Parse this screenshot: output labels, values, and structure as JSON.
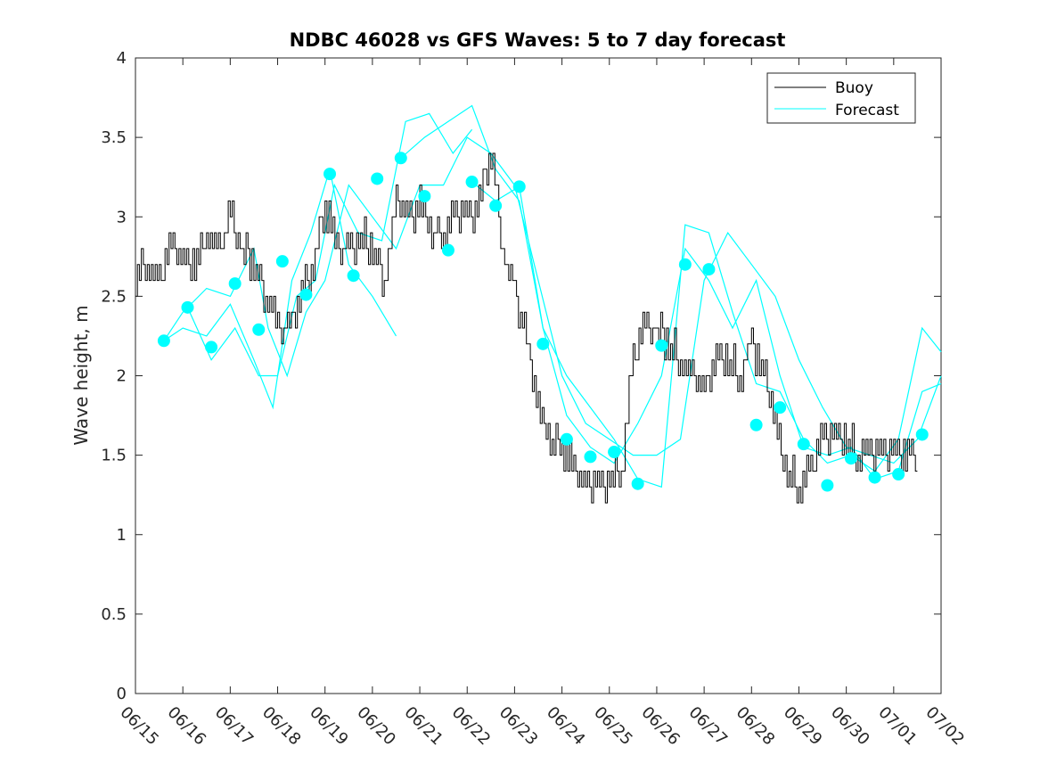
{
  "chart_data": {
    "type": "line",
    "title": "NDBC 46028 vs GFS Waves: 5 to 7 day forecast",
    "xlabel": "",
    "ylabel": "Wave height, m",
    "ylim": [
      0,
      4
    ],
    "yticks": [
      "0",
      "0.5",
      "1",
      "1.5",
      "2",
      "2.5",
      "3",
      "3.5",
      "4"
    ],
    "xlim": [
      0,
      17
    ],
    "xticks": [
      "06/15",
      "06/16",
      "06/17",
      "06/18",
      "06/19",
      "06/20",
      "06/21",
      "06/22",
      "06/23",
      "06/24",
      "06/25",
      "06/26",
      "06/27",
      "06/28",
      "06/29",
      "06/30",
      "07/01",
      "07/02"
    ],
    "grid": false,
    "legend_position": "top-right",
    "colors": {
      "buoy": "#000000",
      "forecast": "#00ffff"
    },
    "series": [
      {
        "name": "Buoy",
        "style": "line",
        "x": [
          0,
          0.25,
          0.5,
          0.75,
          1,
          1.25,
          1.5,
          1.75,
          2,
          2.25,
          2.5,
          2.75,
          3,
          3.25,
          3.5,
          3.75,
          4,
          4.25,
          4.5,
          4.75,
          5,
          5.25,
          5.5,
          5.75,
          6,
          6.25,
          6.5,
          6.75,
          7,
          7.25,
          7.5,
          7.75,
          8,
          8.25,
          8.5,
          8.75,
          9,
          9.25,
          9.5,
          9.75,
          10,
          10.25,
          10.5,
          10.75,
          11,
          11.25,
          11.5,
          11.75,
          12,
          12.25,
          12.5,
          12.75,
          13,
          13.25,
          13.5,
          13.75,
          14,
          14.25,
          14.5,
          14.75,
          15,
          15.25,
          15.5,
          15.75,
          16,
          16.25
        ],
        "y": [
          2.6,
          2.7,
          2.6,
          2.8,
          2.7,
          2.7,
          2.9,
          2.8,
          3.0,
          2.8,
          2.7,
          2.5,
          2.3,
          2.3,
          2.5,
          2.7,
          3.1,
          2.8,
          2.8,
          2.9,
          2.8,
          2.6,
          3.1,
          3.0,
          3.1,
          2.9,
          2.9,
          3.0,
          3.0,
          3.1,
          3.4,
          2.8,
          2.5,
          2.2,
          1.8,
          1.6,
          1.55,
          1.4,
          1.3,
          1.3,
          1.35,
          1.4,
          2.1,
          2.3,
          2.3,
          2.2,
          2.1,
          2.0,
          1.9,
          2.1,
          2.1,
          2.0,
          2.2,
          2.0,
          1.7,
          1.4,
          1.3,
          1.4,
          1.6,
          1.6,
          1.6,
          1.5,
          1.5,
          1.5,
          1.5,
          1.5
        ]
      },
      {
        "name": "Forecast",
        "style": "line",
        "x": [
          0.6,
          1.0,
          1.5,
          2.0,
          2.5,
          2.8,
          3.2,
          3.6,
          4.0,
          4.5,
          5.0,
          5.5,
          6.0,
          6.5,
          7.0,
          7.5,
          8.0,
          8.5,
          9.0,
          9.5,
          10.0,
          10.5,
          11.0,
          11.5,
          12.0,
          12.5,
          13.0,
          13.5,
          14.0,
          14.5,
          15.0,
          15.5,
          16.0,
          16.5,
          17.0
        ],
        "y": [
          2.22,
          2.4,
          2.55,
          2.5,
          2.8,
          2.3,
          2.0,
          2.4,
          2.6,
          3.2,
          3.0,
          2.8,
          3.2,
          3.2,
          3.5,
          3.4,
          3.2,
          2.6,
          2.0,
          1.7,
          1.6,
          1.5,
          1.5,
          1.6,
          2.6,
          2.9,
          2.7,
          2.5,
          2.1,
          1.8,
          1.55,
          1.5,
          1.45,
          1.6,
          2.0
        ]
      }
    ],
    "markers": {
      "x": [
        0.6,
        1.1,
        1.6,
        2.1,
        2.6,
        3.1,
        3.6,
        4.1,
        4.6,
        5.1,
        5.6,
        6.1,
        6.6,
        7.1,
        7.6,
        8.1,
        8.6,
        9.1,
        9.6,
        10.1,
        10.6,
        11.1,
        11.6,
        12.1,
        13.1,
        13.6,
        14.1,
        14.6,
        15.1,
        15.6,
        16.1,
        16.6
      ],
      "y": [
        2.22,
        2.43,
        2.18,
        2.58,
        2.29,
        2.72,
        2.51,
        3.27,
        2.63,
        3.24,
        3.37,
        3.13,
        2.79,
        3.22,
        3.07,
        3.19,
        2.2,
        1.6,
        1.49,
        1.52,
        1.32,
        2.19,
        2.7,
        2.67,
        1.69,
        1.8,
        1.57,
        1.31,
        1.48,
        1.36,
        1.38,
        1.63
      ]
    },
    "extra_forecast_traces": [
      {
        "x": [
          0.6,
          1.0,
          1.5,
          2.0,
          2.5,
          2.9,
          3.3,
          3.7,
          4.1,
          4.5,
          5.0,
          5.5
        ],
        "y": [
          2.22,
          2.3,
          2.25,
          2.45,
          2.1,
          1.8,
          2.6,
          2.9,
          3.3,
          2.7,
          2.5,
          2.25
        ]
      },
      {
        "x": [
          1.1,
          1.6,
          2.1,
          2.6,
          3.0,
          3.4,
          3.8,
          4.2,
          4.7,
          5.2,
          5.7,
          6.2,
          6.7,
          7.1
        ],
        "y": [
          2.43,
          2.1,
          2.3,
          2.0,
          2.0,
          2.5,
          2.6,
          3.2,
          2.9,
          2.85,
          3.6,
          3.65,
          3.4,
          3.55
        ]
      },
      {
        "x": [
          5.6,
          6.1,
          6.6,
          7.1,
          7.6,
          8.1,
          8.6,
          9.1,
          9.6,
          10.1,
          10.6,
          11.1,
          11.6,
          12.1,
          12.6,
          13.1,
          13.6,
          14.1,
          14.6,
          15.1,
          15.6,
          16.1,
          16.6,
          17.0
        ],
        "y": [
          3.37,
          3.5,
          3.6,
          3.7,
          3.3,
          3.1,
          2.3,
          2.0,
          1.8,
          1.6,
          1.35,
          1.3,
          2.95,
          2.9,
          2.4,
          1.95,
          1.9,
          1.6,
          1.45,
          1.5,
          1.4,
          1.6,
          2.3,
          2.15
        ]
      },
      {
        "x": [
          7.1,
          7.6,
          8.1,
          8.6,
          9.1,
          9.6,
          10.1,
          10.6,
          11.1,
          11.6,
          12.1,
          12.6,
          13.1,
          13.6,
          14.1,
          14.6,
          15.1,
          15.6,
          16.1,
          16.6,
          17.0
        ],
        "y": [
          3.22,
          3.1,
          3.19,
          2.3,
          1.75,
          1.55,
          1.45,
          1.7,
          2.0,
          2.8,
          2.6,
          2.3,
          2.6,
          2.0,
          1.55,
          1.5,
          1.55,
          1.35,
          1.4,
          1.9,
          1.95
        ]
      }
    ]
  }
}
